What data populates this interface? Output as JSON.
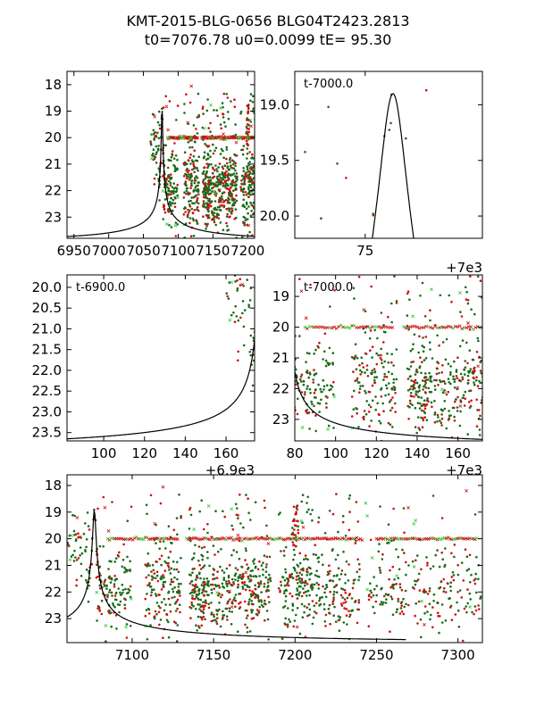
{
  "figure": {
    "title_line1": "KMT-2015-BLG-0656 BLG04T2423.2813",
    "title_line2": "t0=7076.78 u0=0.0099 tE=  95.30"
  },
  "model": {
    "t0": 7076.78,
    "u0": 0.0099,
    "tE": 95.3,
    "mag_base": 23.87,
    "peak_mag": 18.9
  },
  "colors": {
    "green": "#1a6b1a",
    "red": "#cc1111",
    "lime": "#33cc33",
    "curve": "#000000"
  },
  "chart_data": [
    {
      "id": "full",
      "type": "scatter",
      "title": "",
      "xlim": [
        6940,
        7210
      ],
      "ylim": [
        23.8,
        17.5
      ],
      "xticks": [
        6950,
        7000,
        7050,
        7100,
        7150,
        7200
      ],
      "yticks": [
        18,
        19,
        20,
        21,
        22,
        23
      ],
      "xtick_labels": [
        "6950",
        "7000",
        "7050",
        "7100",
        "7150",
        "7200"
      ],
      "ytick_labels": [
        "18",
        "19",
        "20",
        "21",
        "22",
        "23"
      ],
      "offset_label": "",
      "inner_label": "",
      "series": [
        {
          "name": "KMTNet data (green dots / red dots)"
        },
        {
          "name": "flagged points (red/green crosses)"
        },
        {
          "name": "PSPL model"
        }
      ]
    },
    {
      "id": "peak",
      "type": "scatter",
      "xlim": [
        70.5,
        82.5
      ],
      "ylim": [
        20.2,
        18.7
      ],
      "xticks": [
        75
      ],
      "yticks": [
        19.0,
        19.5,
        20.0
      ],
      "xtick_labels": [
        "75"
      ],
      "ytick_labels": [
        "19.0",
        "19.5",
        "20.0"
      ],
      "offset_label": "+7e3",
      "inner_label": "t-7000.0",
      "series": [
        {
          "name": "data"
        },
        {
          "name": "PSPL model"
        }
      ]
    },
    {
      "id": "rise",
      "type": "scatter",
      "xlim": [
        82,
        174
      ],
      "ylim": [
        23.7,
        19.7
      ],
      "xticks": [
        100,
        120,
        140,
        160
      ],
      "yticks": [
        20.0,
        20.5,
        21.0,
        21.5,
        22.0,
        22.5,
        23.0,
        23.5
      ],
      "xtick_labels": [
        "100",
        "120",
        "140",
        "160"
      ],
      "ytick_labels": [
        "20.0",
        "20.5",
        "21.0",
        "21.5",
        "22.0",
        "22.5",
        "23.0",
        "23.5"
      ],
      "offset_label": "+6.9e3",
      "inner_label": "t-6900.0",
      "series": [
        {
          "name": "data"
        },
        {
          "name": "PSPL model"
        }
      ]
    },
    {
      "id": "decline",
      "type": "scatter",
      "xlim": [
        80,
        172
      ],
      "ylim": [
        23.7,
        18.3
      ],
      "xticks": [
        80,
        100,
        120,
        140,
        160
      ],
      "yticks": [
        19,
        20,
        21,
        22,
        23
      ],
      "xtick_labels": [
        "80",
        "100",
        "120",
        "140",
        "160"
      ],
      "ytick_labels": [
        "19",
        "20",
        "21",
        "22",
        "23"
      ],
      "offset_label": "+7e3",
      "inner_label": "t-7000.0",
      "series": [
        {
          "name": "data"
        },
        {
          "name": "PSPL model"
        }
      ]
    },
    {
      "id": "season",
      "type": "scatter",
      "xlim": [
        7060,
        7315
      ],
      "ylim": [
        23.9,
        17.6
      ],
      "xticks": [
        7100,
        7150,
        7200,
        7250,
        7300
      ],
      "yticks": [
        18,
        19,
        20,
        21,
        22,
        23
      ],
      "xtick_labels": [
        "7100",
        "7150",
        "7200",
        "7250",
        "7300"
      ],
      "ytick_labels": [
        "18",
        "19",
        "20",
        "21",
        "22",
        "23"
      ],
      "offset_label": "",
      "inner_label": "",
      "curve_end": 7268,
      "series": [
        {
          "name": "data"
        },
        {
          "name": "PSPL model"
        }
      ]
    }
  ]
}
